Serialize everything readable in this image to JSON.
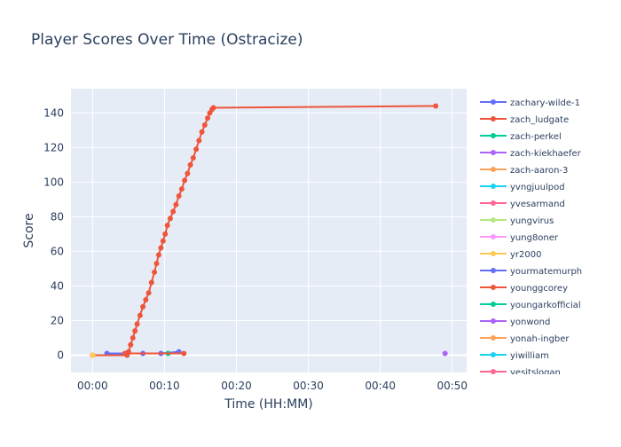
{
  "chart_data": {
    "type": "line",
    "title": "Player Scores Over Time (Ostracize)",
    "xlabel": "Time (HH:MM)",
    "ylabel": "Score",
    "x_unit": "minutes",
    "xlim": [
      -3,
      52
    ],
    "ylim": [
      -10,
      154
    ],
    "x_ticks": [
      {
        "value": 0,
        "label": "00:00"
      },
      {
        "value": 10,
        "label": "00:10"
      },
      {
        "value": 20,
        "label": "00:20"
      },
      {
        "value": 30,
        "label": "00:30"
      },
      {
        "value": 40,
        "label": "00:40"
      },
      {
        "value": 50,
        "label": "00:50"
      }
    ],
    "y_ticks": [
      0,
      20,
      40,
      60,
      80,
      100,
      120,
      140
    ],
    "grid": true,
    "legend_position": "right",
    "series": [
      {
        "name": "zachary-wilde-1",
        "color": "#636efa",
        "x": [
          2.0,
          4.5,
          7.0,
          9.5,
          12.0
        ],
        "y": [
          1,
          1,
          1,
          1,
          2
        ]
      },
      {
        "name": "zach_ludgate",
        "color": "#ef553b",
        "x": [
          0.0,
          4.8,
          5.0,
          5.3,
          5.6,
          5.9,
          6.2,
          6.6,
          7.0,
          7.4,
          7.8,
          8.2,
          8.6,
          8.9,
          9.2,
          9.5,
          9.8,
          10.1,
          10.4,
          10.8,
          11.2,
          11.6,
          12.0,
          12.4,
          12.8,
          13.2,
          13.6,
          14.0,
          14.4,
          14.8,
          15.2,
          15.6,
          16.0,
          16.3,
          16.6,
          16.8,
          47.7
        ],
        "y": [
          0,
          0,
          2,
          6,
          10,
          14,
          18,
          23,
          28,
          32,
          36,
          42,
          48,
          53,
          58,
          62,
          66,
          70,
          75,
          79,
          83,
          87,
          92,
          96,
          101,
          105,
          110,
          114,
          119,
          124,
          129,
          133,
          137,
          140,
          142,
          143,
          144
        ]
      },
      {
        "name": "zach-perkel",
        "color": "#00cc96",
        "x": [
          10.5
        ],
        "y": [
          1
        ]
      },
      {
        "name": "zach-kiekhaefer",
        "color": "#ab63fa",
        "x": [
          49.0
        ],
        "y": [
          1
        ]
      },
      {
        "name": "zach-aaron-3",
        "color": "#ffa15a",
        "x": [
          0.0
        ],
        "y": [
          0
        ]
      },
      {
        "name": "yvngjuulpod",
        "color": "#19d3f3",
        "x": [],
        "y": []
      },
      {
        "name": "yvesarmand",
        "color": "#ff6692",
        "x": [],
        "y": []
      },
      {
        "name": "yungvirus",
        "color": "#b6e880",
        "x": [],
        "y": []
      },
      {
        "name": "yung8oner",
        "color": "#ff97ff",
        "x": [],
        "y": []
      },
      {
        "name": "yr2000",
        "color": "#fecb52",
        "x": [
          0.0
        ],
        "y": [
          0
        ]
      },
      {
        "name": "yourmatemurph",
        "color": "#636efa",
        "x": [],
        "y": []
      },
      {
        "name": "younggcorey",
        "color": "#ef553b",
        "x": [
          4.5,
          12.7
        ],
        "y": [
          1,
          1
        ]
      },
      {
        "name": "youngarkofficial",
        "color": "#00cc96",
        "x": [],
        "y": []
      },
      {
        "name": "yonwond",
        "color": "#ab63fa",
        "x": [],
        "y": []
      },
      {
        "name": "yonah-ingber",
        "color": "#ffa15a",
        "x": [],
        "y": []
      },
      {
        "name": "yiwilliam",
        "color": "#19d3f3",
        "x": [],
        "y": []
      },
      {
        "name": "yesitslogan",
        "color": "#ff6692",
        "x": [],
        "y": []
      }
    ]
  }
}
